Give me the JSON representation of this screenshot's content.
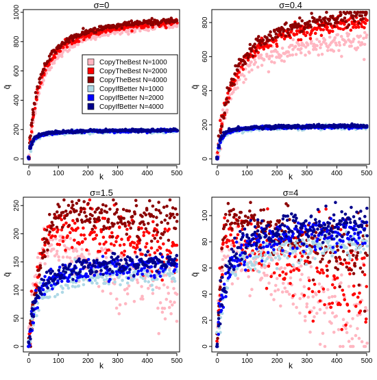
{
  "chart_data": [
    {
      "type": "scatter",
      "title": "σ=0",
      "xlabel": "k",
      "ylabel": "q̄",
      "xlim": [
        0,
        500
      ],
      "ylim": [
        0,
        1000
      ],
      "xticks": [
        0,
        100,
        200,
        300,
        400,
        500
      ],
      "yticks": [
        0,
        200,
        400,
        600,
        800,
        1000
      ],
      "legend": "center-right",
      "series": [
        {
          "name": "CopyTheBest N=1000",
          "color": "#FFB6C1",
          "shape": "saturating",
          "asymptote": 985,
          "halfk": 40,
          "spread": 12
        },
        {
          "name": "CopyTheBest N=2000",
          "color": "#FF0000",
          "shape": "saturating",
          "asymptote": 1000,
          "halfk": 36,
          "spread": 10
        },
        {
          "name": "CopyTheBest N=4000",
          "color": "#8B0000",
          "shape": "saturating",
          "asymptote": 1005,
          "halfk": 32,
          "spread": 10
        },
        {
          "name": "CopyIfBetter N=1000",
          "color": "#ADD8E6",
          "shape": "saturating",
          "asymptote": 192,
          "halfk": 10,
          "spread": 6
        },
        {
          "name": "CopyIfBetter N=2000",
          "color": "#0000FF",
          "shape": "saturating",
          "asymptote": 196,
          "halfk": 9,
          "spread": 5
        },
        {
          "name": "CopyIfBetter N=4000",
          "color": "#00008B",
          "shape": "saturating",
          "asymptote": 198,
          "halfk": 8,
          "spread": 5
        }
      ]
    },
    {
      "type": "scatter",
      "title": "σ=0.4",
      "xlabel": "k",
      "ylabel": "q̄",
      "xlim": [
        0,
        500
      ],
      "ylim": [
        0,
        860
      ],
      "xticks": [
        0,
        100,
        200,
        300,
        400,
        500
      ],
      "yticks": [
        0,
        200,
        400,
        600,
        800
      ],
      "series": [
        {
          "name": "CopyTheBest N=1000",
          "color": "#FFB6C1",
          "shape": "saturating",
          "asymptote": 760,
          "halfk": 45,
          "spread": 30
        },
        {
          "name": "CopyTheBest N=2000",
          "color": "#FF0000",
          "shape": "saturating",
          "asymptote": 880,
          "halfk": 50,
          "spread": 20
        },
        {
          "name": "CopyTheBest N=4000",
          "color": "#8B0000",
          "shape": "saturating",
          "asymptote": 930,
          "halfk": 50,
          "spread": 20
        },
        {
          "name": "CopyIfBetter N=1000",
          "color": "#ADD8E6",
          "shape": "saturating",
          "asymptote": 190,
          "halfk": 10,
          "spread": 6
        },
        {
          "name": "CopyIfBetter N=2000",
          "color": "#0000FF",
          "shape": "saturating",
          "asymptote": 193,
          "halfk": 9,
          "spread": 5
        },
        {
          "name": "CopyIfBetter N=4000",
          "color": "#00008B",
          "shape": "saturating",
          "asymptote": 196,
          "halfk": 8,
          "spread": 5
        }
      ]
    },
    {
      "type": "scatter",
      "title": "σ=1.5",
      "xlabel": "k",
      "ylabel": "q̄",
      "xlim": [
        0,
        500
      ],
      "ylim": [
        0,
        260
      ],
      "xticks": [
        0,
        100,
        200,
        300,
        400,
        500
      ],
      "yticks": [
        0,
        50,
        100,
        150,
        200,
        250
      ],
      "series": [
        {
          "name": "CopyTheBest N=1000",
          "color": "#FFB6C1",
          "shape": "hump",
          "peak": 175,
          "peakk": 70,
          "end": 90,
          "spread": 22
        },
        {
          "name": "CopyTheBest N=2000",
          "color": "#FF0000",
          "shape": "hump",
          "peak": 210,
          "peakk": 110,
          "end": 165,
          "spread": 18
        },
        {
          "name": "CopyTheBest N=4000",
          "color": "#8B0000",
          "shape": "hump",
          "peak": 238,
          "peakk": 140,
          "end": 220,
          "spread": 14
        },
        {
          "name": "CopyIfBetter N=1000",
          "color": "#ADD8E6",
          "shape": "saturating",
          "asymptote": 138,
          "halfk": 22,
          "spread": 10
        },
        {
          "name": "CopyIfBetter N=2000",
          "color": "#0000FF",
          "shape": "saturating",
          "asymptote": 150,
          "halfk": 22,
          "spread": 9
        },
        {
          "name": "CopyIfBetter N=4000",
          "color": "#00008B",
          "shape": "saturating",
          "asymptote": 158,
          "halfk": 22,
          "spread": 8
        }
      ]
    },
    {
      "type": "scatter",
      "title": "σ=4",
      "xlabel": "k",
      "ylabel": "q̄",
      "xlim": [
        0,
        500
      ],
      "ylim": [
        0,
        112
      ],
      "xticks": [
        0,
        100,
        200,
        300,
        400,
        500
      ],
      "yticks": [
        0,
        20,
        40,
        60,
        80,
        100
      ],
      "series": [
        {
          "name": "CopyTheBest N=1000",
          "color": "#FFB6C1",
          "shape": "hump",
          "peak": 72,
          "peakk": 30,
          "end": 20,
          "spread": 14
        },
        {
          "name": "CopyTheBest N=2000",
          "color": "#FF0000",
          "shape": "hump",
          "peak": 88,
          "peakk": 40,
          "end": 40,
          "spread": 12
        },
        {
          "name": "CopyTheBest N=4000",
          "color": "#8B0000",
          "shape": "hump",
          "peak": 100,
          "peakk": 50,
          "end": 65,
          "spread": 8
        },
        {
          "name": "CopyIfBetter N=1000",
          "color": "#ADD8E6",
          "shape": "saturating",
          "asymptote": 82,
          "halfk": 25,
          "spread": 5
        },
        {
          "name": "CopyIfBetter N=2000",
          "color": "#0000FF",
          "shape": "saturating",
          "asymptote": 92,
          "halfk": 25,
          "spread": 6
        },
        {
          "name": "CopyIfBetter N=4000",
          "color": "#00008B",
          "shape": "saturating",
          "asymptote": 100,
          "halfk": 25,
          "spread": 6
        }
      ]
    }
  ]
}
